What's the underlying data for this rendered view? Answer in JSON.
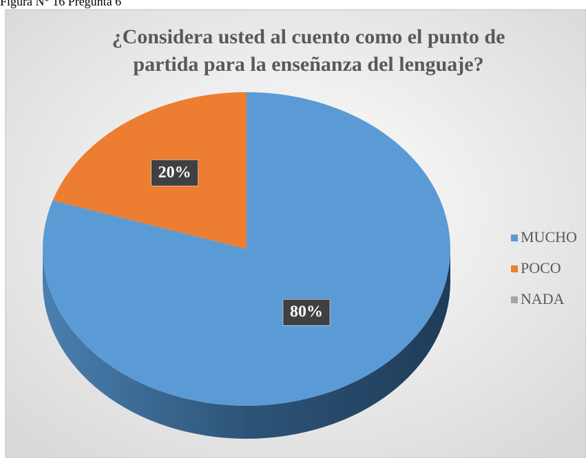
{
  "caption": "Figura N° 16 Pregunta 6",
  "chart_data": {
    "type": "pie",
    "title": "¿Considera usted al cuento como el punto de partida para la enseñanza del lenguaje?",
    "categories": [
      "MUCHO",
      "POCO",
      "NADA"
    ],
    "values": [
      80,
      20,
      0
    ],
    "value_labels": [
      "80%",
      "20%",
      null
    ],
    "colors": [
      "#5b9bd5",
      "#ed7d31",
      "#a5a5a5"
    ],
    "legend": "right"
  }
}
